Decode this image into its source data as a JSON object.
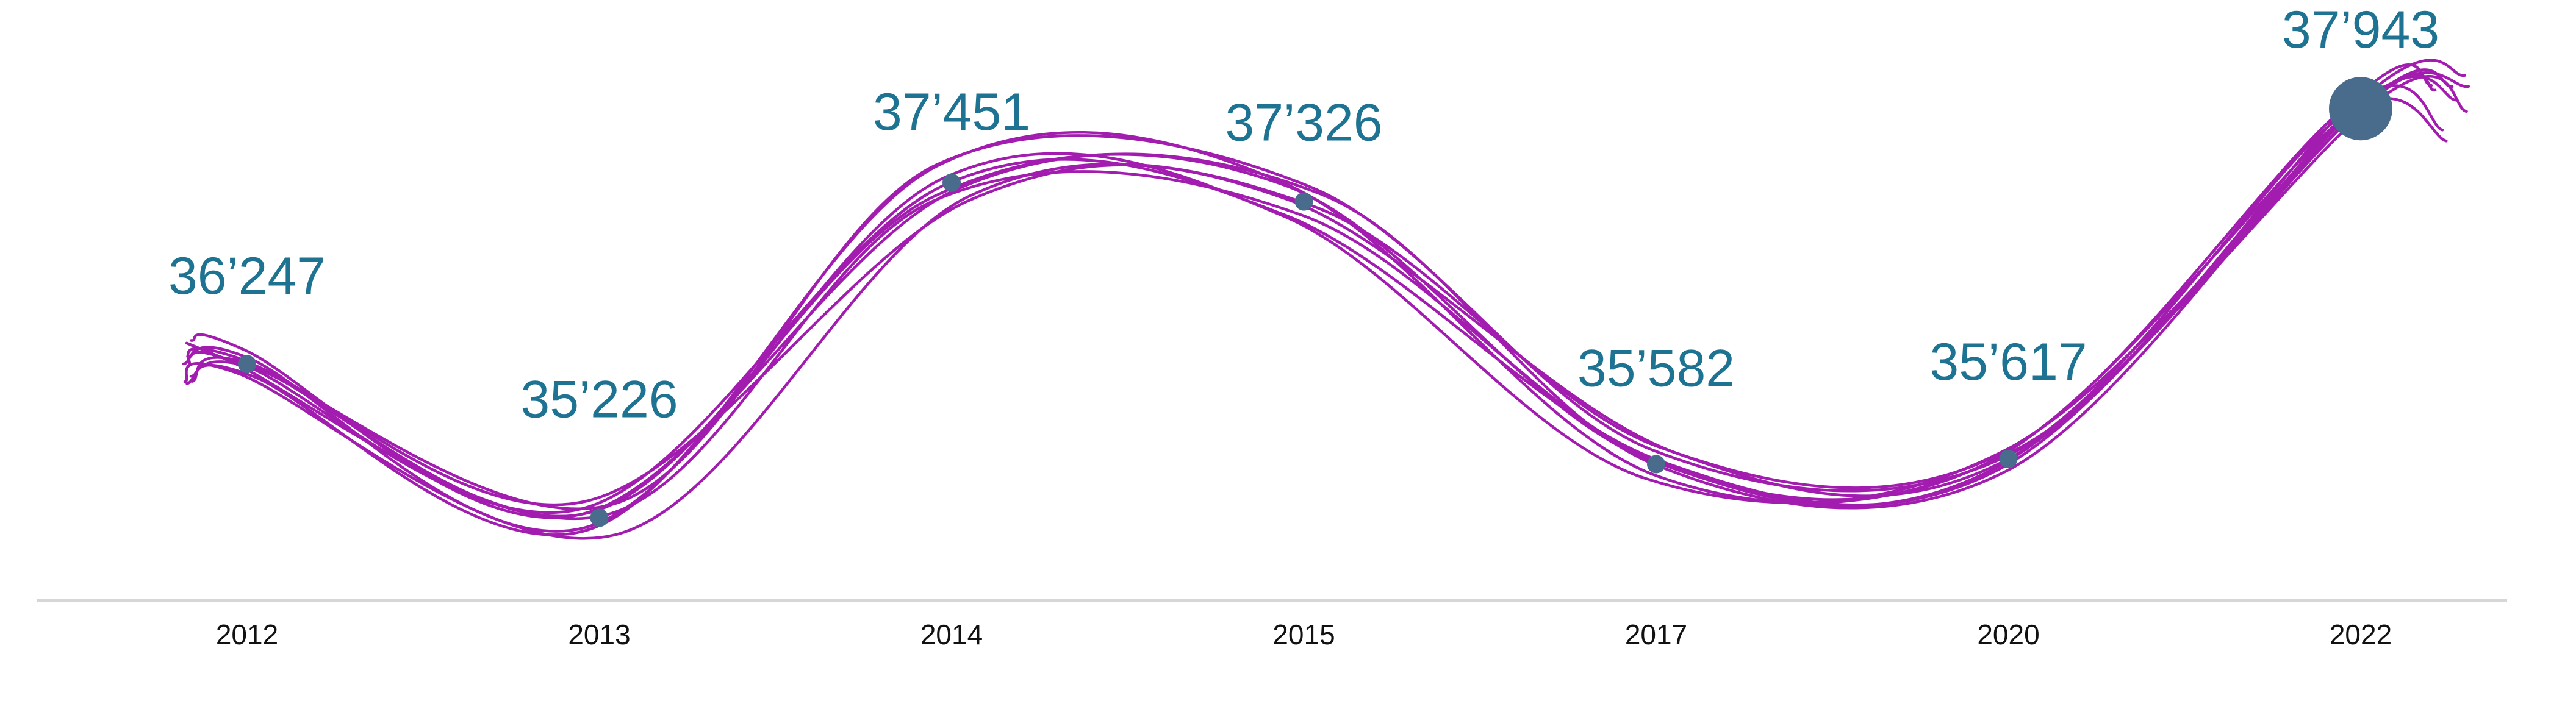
{
  "chart_data": {
    "type": "line",
    "title": "",
    "xlabel": "",
    "ylabel": "",
    "categories": [
      "2012",
      "2013",
      "2014",
      "2015",
      "2017",
      "2020",
      "2022"
    ],
    "values": [
      36247,
      35226,
      37451,
      37326,
      35582,
      35617,
      37943
    ],
    "value_labels": [
      "36’247",
      "35’226",
      "37’451",
      "37’326",
      "35’582",
      "35’617",
      "37’943"
    ],
    "ylim": [
      34900,
      38300
    ],
    "grid": false,
    "legend": "none",
    "highlight_last_point": true,
    "style": "multiple hand-drawn strokes along the series"
  },
  "colors": {
    "line": "#a21caf",
    "marker": "#4a6c8c",
    "value_label": "#1d7391",
    "tick_label": "#111111",
    "axis": "#d6d6d6"
  }
}
